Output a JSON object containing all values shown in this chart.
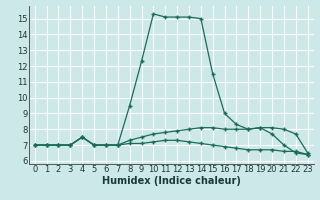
{
  "xlabel": "Humidex (Indice chaleur)",
  "background_color": "#cce8e8",
  "grid_color": "#ffffff",
  "line_color": "#1a6b5a",
  "x_values": [
    0,
    1,
    2,
    3,
    4,
    5,
    6,
    7,
    8,
    9,
    10,
    11,
    12,
    13,
    14,
    15,
    16,
    17,
    18,
    19,
    20,
    21,
    22,
    23
  ],
  "line1_y": [
    7.0,
    7.0,
    7.0,
    7.0,
    7.5,
    7.0,
    7.0,
    7.0,
    9.5,
    12.3,
    15.3,
    15.1,
    15.1,
    15.1,
    15.0,
    11.5,
    9.0,
    8.3,
    8.0,
    8.1,
    7.7,
    7.0,
    6.5,
    6.4
  ],
  "line2_y": [
    7.0,
    7.0,
    7.0,
    7.0,
    7.5,
    7.0,
    7.0,
    7.0,
    7.3,
    7.5,
    7.7,
    7.8,
    7.9,
    8.0,
    8.1,
    8.1,
    8.0,
    8.0,
    8.0,
    8.1,
    8.1,
    8.0,
    7.7,
    6.5
  ],
  "line3_y": [
    7.0,
    7.0,
    7.0,
    7.0,
    7.5,
    7.0,
    7.0,
    7.0,
    7.1,
    7.1,
    7.2,
    7.3,
    7.3,
    7.2,
    7.1,
    7.0,
    6.9,
    6.8,
    6.7,
    6.7,
    6.7,
    6.6,
    6.6,
    6.4
  ],
  "ylim": [
    5.8,
    15.8
  ],
  "xlim": [
    -0.5,
    23.5
  ],
  "yticks": [
    6,
    7,
    8,
    9,
    10,
    11,
    12,
    13,
    14,
    15
  ],
  "xticks": [
    0,
    1,
    2,
    3,
    4,
    5,
    6,
    7,
    8,
    9,
    10,
    11,
    12,
    13,
    14,
    15,
    16,
    17,
    18,
    19,
    20,
    21,
    22,
    23
  ],
  "tick_fontsize": 6,
  "xlabel_fontsize": 7
}
